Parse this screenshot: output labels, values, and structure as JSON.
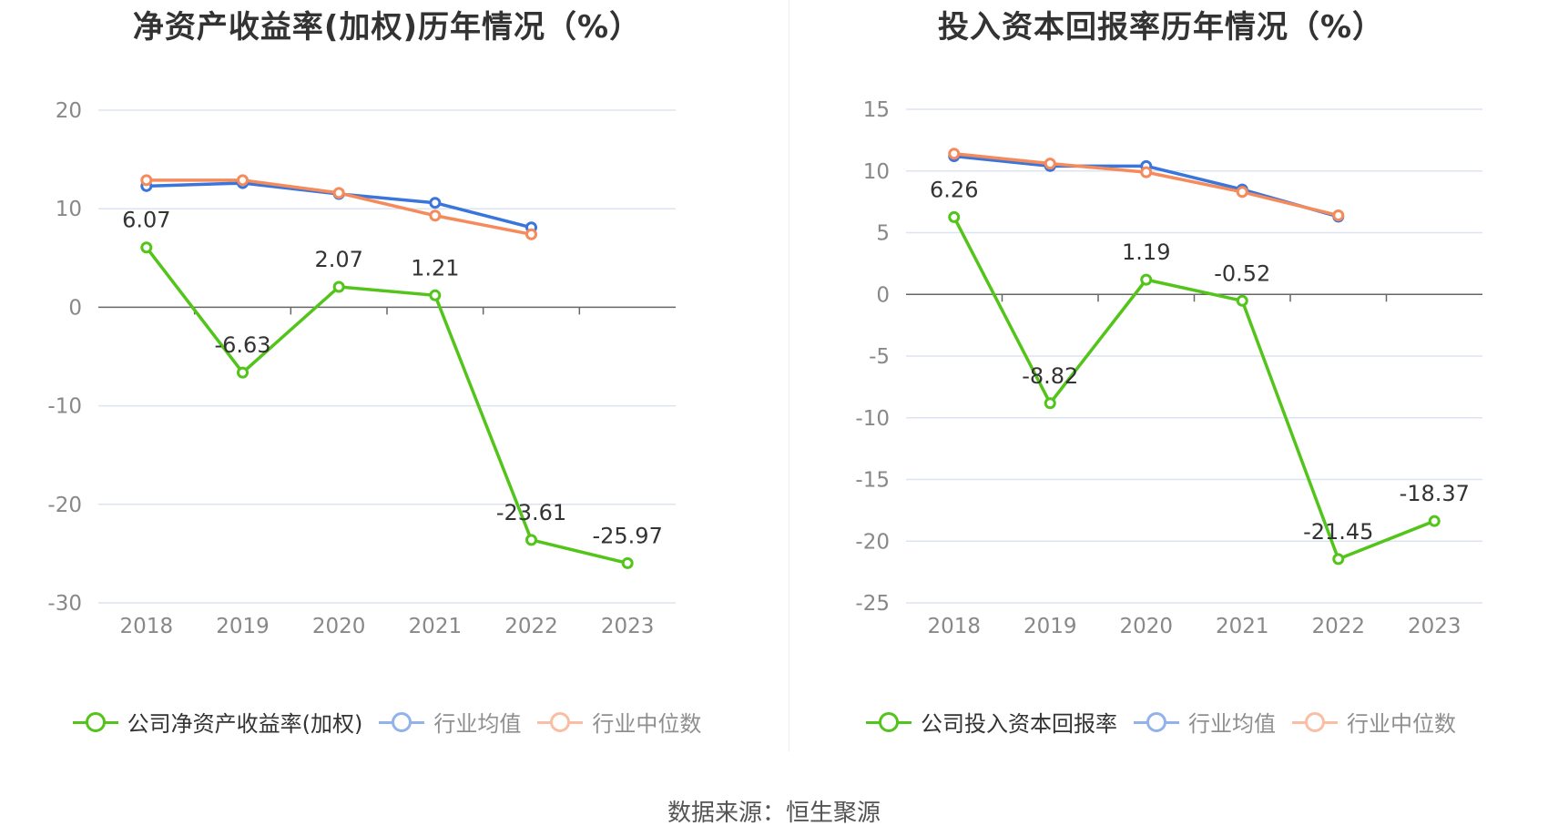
{
  "colors": {
    "company": "#52c41a",
    "avg": "#3a75dc",
    "median": "#f58a5a",
    "grid": "#dde3f0",
    "axis": "#666666",
    "tick_text": "#888888"
  },
  "source": "数据来源：恒生聚源",
  "legend": {
    "avg_label": "行业均值",
    "median_label": "行业中位数"
  },
  "chart_data": [
    {
      "type": "line",
      "title": "净资产收益率(加权)历年情况（%）",
      "categories": [
        "2018",
        "2019",
        "2020",
        "2021",
        "2022",
        "2023"
      ],
      "ylim": [
        -30,
        20
      ],
      "yticks": [
        "20",
        "10",
        "0",
        "-10",
        "-20",
        "-30"
      ],
      "series": [
        {
          "name": "公司净资产收益率(加权)",
          "values": [
            6.07,
            -6.63,
            2.07,
            1.21,
            -23.61,
            -25.97
          ],
          "labels": [
            "6.07",
            "-6.63",
            "2.07",
            "1.21",
            "-23.61",
            "-25.97"
          ]
        },
        {
          "name": "行业均值",
          "values": [
            12.3,
            12.6,
            11.5,
            10.6,
            8.1,
            null
          ]
        },
        {
          "name": "行业中位数",
          "values": [
            12.9,
            12.9,
            11.6,
            9.3,
            7.4,
            null
          ]
        }
      ]
    },
    {
      "type": "line",
      "title": "投入资本回报率历年情况（%）",
      "categories": [
        "2018",
        "2019",
        "2020",
        "2021",
        "2022",
        "2023"
      ],
      "ylim": [
        -25,
        15
      ],
      "yticks": [
        "15",
        "10",
        "5",
        "0",
        "-5",
        "-10",
        "-15",
        "-20",
        "-25"
      ],
      "series": [
        {
          "name": "公司投入资本回报率",
          "values": [
            6.26,
            -8.82,
            1.19,
            -0.52,
            -21.45,
            -18.37
          ],
          "labels": [
            "6.26",
            "-8.82",
            "1.19",
            "-0.52",
            "-21.45",
            "-18.37"
          ]
        },
        {
          "name": "行业均值",
          "values": [
            11.2,
            10.4,
            10.4,
            8.5,
            6.3,
            null
          ]
        },
        {
          "name": "行业中位数",
          "values": [
            11.4,
            10.6,
            9.9,
            8.3,
            6.4,
            null
          ]
        }
      ]
    }
  ]
}
